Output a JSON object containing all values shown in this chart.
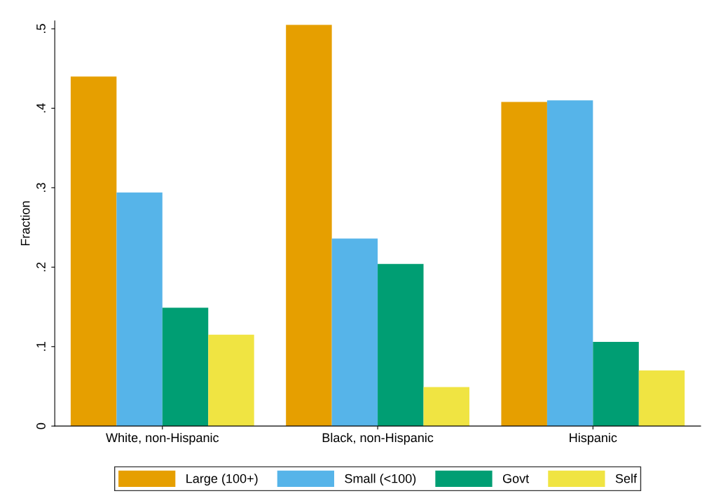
{
  "chart_data": {
    "type": "bar",
    "ylabel": "Fraction",
    "categories": [
      "White, non-Hispanic",
      "Black, non-Hispanic",
      "Hispanic"
    ],
    "series": [
      {
        "name": "Large (100+)",
        "color": "#e69f00",
        "values": [
          0.44,
          0.505,
          0.408
        ]
      },
      {
        "name": "Small (<100)",
        "color": "#56b4e9",
        "values": [
          0.294,
          0.236,
          0.41
        ]
      },
      {
        "name": "Govt",
        "color": "#009e73",
        "values": [
          0.149,
          0.204,
          0.106
        ]
      },
      {
        "name": "Self",
        "color": "#f0e442",
        "values": [
          0.115,
          0.049,
          0.07
        ]
      }
    ],
    "ylim": [
      0,
      0.51
    ],
    "yticks": [
      {
        "value": 0,
        "label": "0"
      },
      {
        "value": 0.1,
        "label": ".1"
      },
      {
        "value": 0.2,
        "label": ".2"
      },
      {
        "value": 0.3,
        "label": ".3"
      },
      {
        "value": 0.4,
        "label": ".4"
      },
      {
        "value": 0.5,
        "label": ".5"
      }
    ],
    "grid": false,
    "legend": "bottom"
  }
}
